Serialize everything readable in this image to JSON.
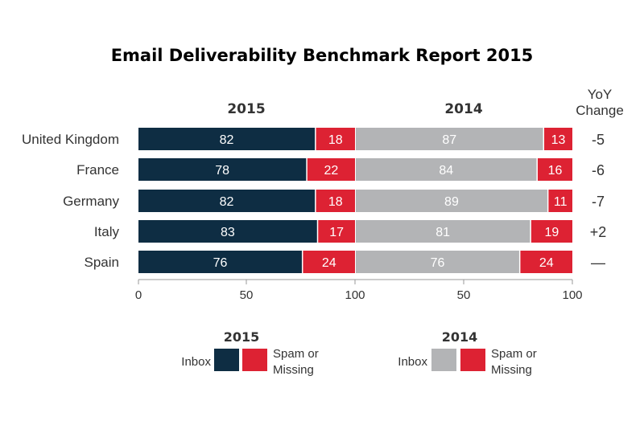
{
  "chart_data": {
    "type": "bar",
    "title": "Email Deliverability Benchmark Report 2015",
    "categories": [
      "United Kingdom",
      "France",
      "Germany",
      "Italy",
      "Spain"
    ],
    "panels": [
      {
        "name": "2015",
        "series": [
          {
            "name": "Inbox",
            "values": [
              82,
              78,
              82,
              83,
              76
            ],
            "color": "#0e2d43"
          },
          {
            "name": "Spam or Missing",
            "values": [
              18,
              22,
              18,
              17,
              24
            ],
            "color": "#dd2233"
          }
        ]
      },
      {
        "name": "2014",
        "series": [
          {
            "name": "Inbox",
            "values": [
              87,
              84,
              89,
              81,
              76
            ],
            "color": "#b3b4b6"
          },
          {
            "name": "Spam or Missing",
            "values": [
              13,
              16,
              11,
              19,
              24
            ],
            "color": "#dd2233"
          }
        ]
      }
    ],
    "xlim": [
      0,
      100
    ],
    "x_ticks": [
      "0",
      "50",
      "100",
      "50",
      "100"
    ],
    "yoy_header": [
      "YoY",
      "Change"
    ],
    "yoy_change": [
      "-5",
      "-6",
      "-7",
      "+2",
      "—"
    ],
    "legend": [
      {
        "title": "2015",
        "inbox_label": "Inbox",
        "spam_label": [
          "Spam or",
          "Missing"
        ]
      },
      {
        "title": "2014",
        "inbox_label": "Inbox",
        "spam_label": [
          "Spam or",
          "Missing"
        ]
      }
    ],
    "grid": false,
    "legend_position": "bottom"
  }
}
